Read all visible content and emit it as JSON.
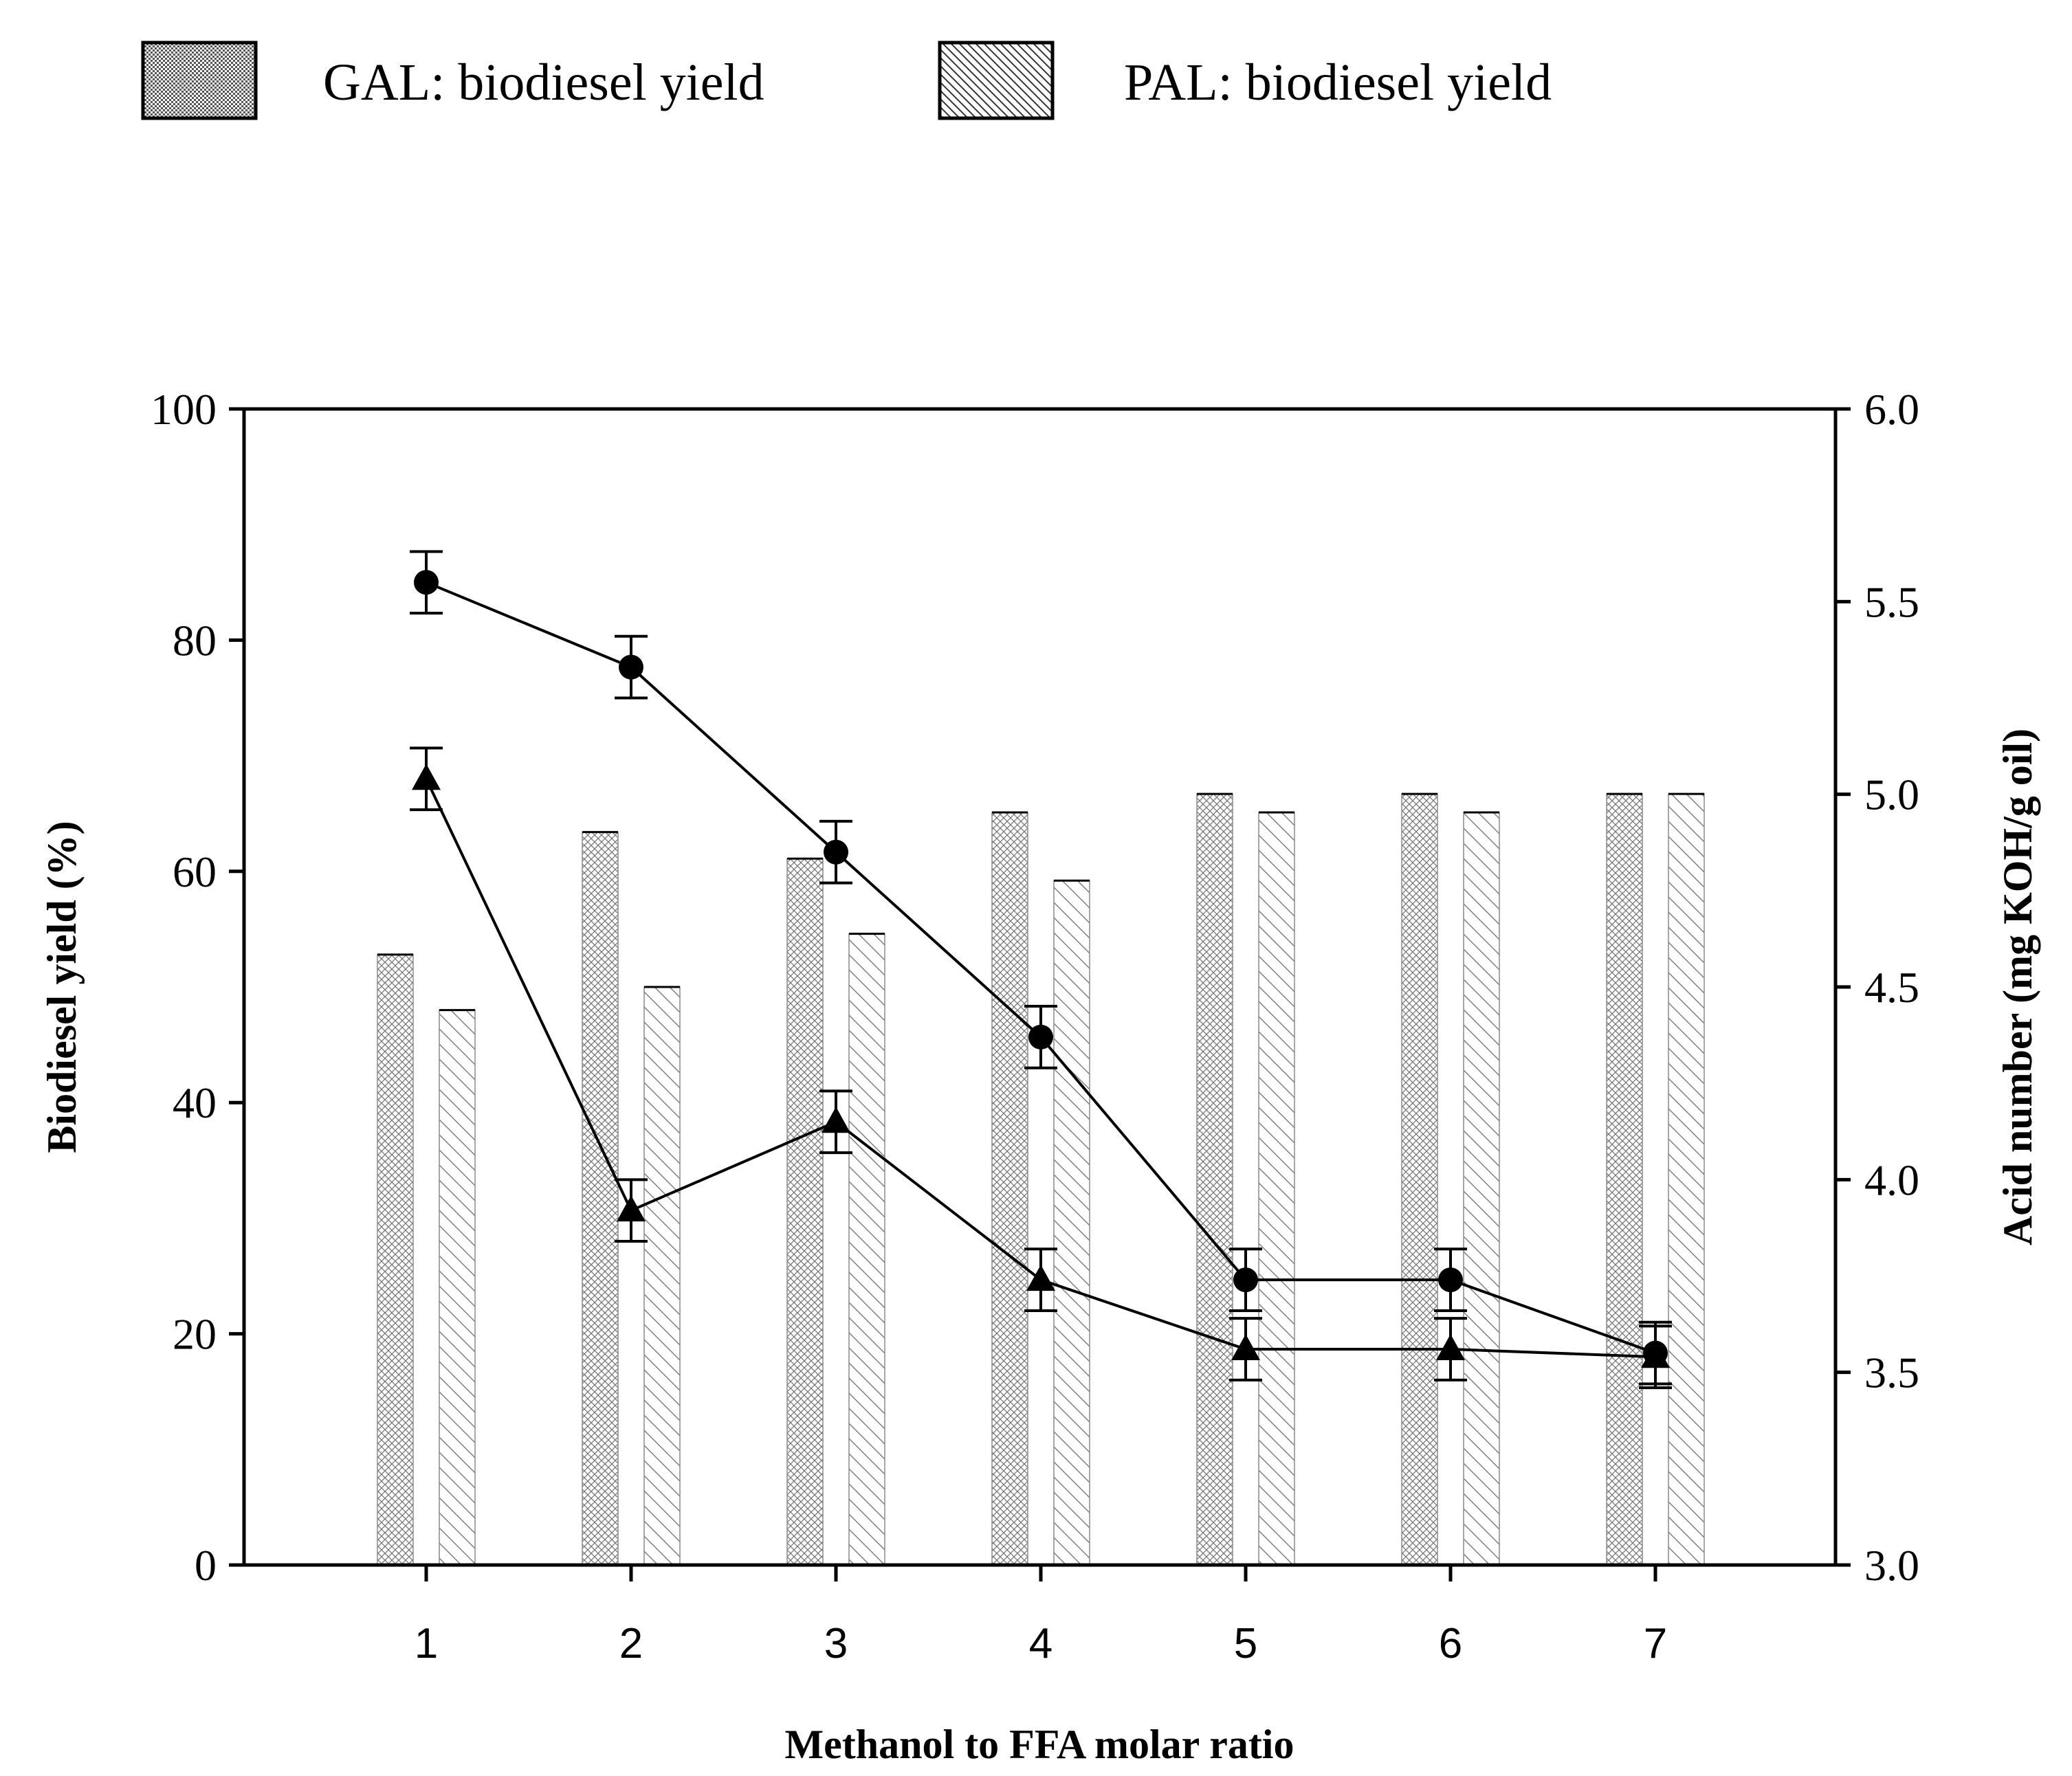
{
  "chart_data": {
    "type": "bar",
    "xlabel": "Methanol to FFA molar ratio",
    "ylabel": "Biodiesel yield (%)",
    "y2label": "Acid number (mg KOH/g oil)",
    "categories": [
      "1",
      "2",
      "3",
      "4",
      "5",
      "6",
      "7"
    ],
    "ylim": [
      0,
      100
    ],
    "y2lim": [
      3.0,
      6.0
    ],
    "yticks": [
      "0",
      "20",
      "40",
      "60",
      "80",
      "100"
    ],
    "y2ticks": [
      "3.0",
      "3.5",
      "4.0",
      "4.5",
      "5.0",
      "5.5",
      "6.0"
    ],
    "legend_position": "top",
    "series": [
      {
        "name": "GAL: biodiesel yield",
        "kind": "bar",
        "pattern": "crosshatch",
        "axis": "left",
        "values": [
          52.8,
          63.4,
          61.1,
          65.1,
          66.7,
          66.7,
          66.7
        ]
      },
      {
        "name": "PAL: biodiesel yield",
        "kind": "bar",
        "pattern": "diagonal",
        "axis": "left",
        "values": [
          48.0,
          50.0,
          54.6,
          59.2,
          65.1,
          65.1,
          66.7
        ]
      },
      {
        "name": "Acid number (circles)",
        "kind": "line",
        "marker": "circle",
        "axis": "right",
        "values": [
          5.55,
          5.33,
          4.85,
          4.37,
          3.74,
          3.74,
          3.55
        ],
        "errors": [
          0.08,
          0.08,
          0.08,
          0.08,
          0.08,
          0.08,
          0.08
        ]
      },
      {
        "name": "Acid number (triangles)",
        "kind": "line",
        "marker": "triangle",
        "axis": "right",
        "values": [
          5.04,
          3.92,
          4.15,
          3.74,
          3.56,
          3.56,
          3.54
        ],
        "errors": [
          0.08,
          0.08,
          0.08,
          0.08,
          0.08,
          0.08,
          0.08
        ]
      }
    ]
  }
}
